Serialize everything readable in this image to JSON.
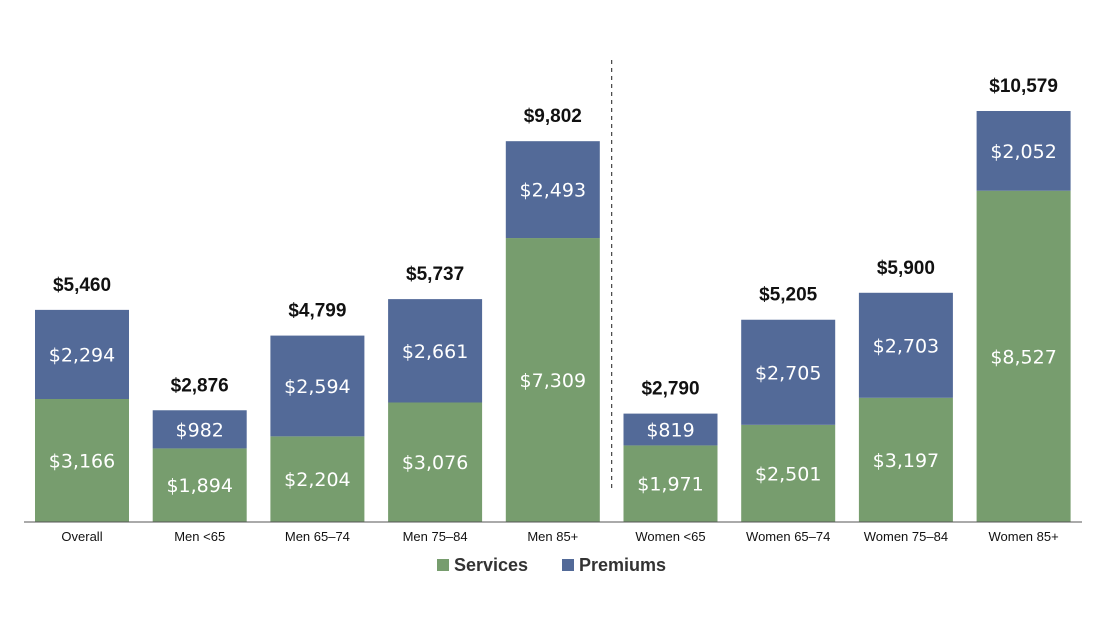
{
  "chart_data": {
    "type": "bar",
    "stacked": true,
    "categories": [
      "Overall",
      "Men <65",
      "Men 65–74",
      "Men 75–84",
      "Men 85+",
      "Women <65",
      "Women 65–74",
      "Women 75–84",
      "Women 85+"
    ],
    "series": [
      {
        "name": "Services",
        "color": "#779d6e",
        "values": [
          3166,
          1894,
          2204,
          3076,
          7309,
          1971,
          2501,
          3197,
          8527
        ],
        "labels": [
          "$3,166",
          "$1,894",
          "$2,204",
          "$3,076",
          "$7,309",
          "$1,971",
          "$2,501",
          "$3,197",
          "$8,527"
        ]
      },
      {
        "name": "Premiums",
        "color": "#536a98",
        "values": [
          2294,
          982,
          2594,
          2661,
          2493,
          819,
          2705,
          2703,
          2052
        ],
        "labels": [
          "$2,294",
          "$982",
          "$2,594",
          "$2,661",
          "$2,493",
          "$819",
          "$2,705",
          "$2,703",
          "$2,052"
        ]
      }
    ],
    "totals": [
      5460,
      2876,
      4799,
      5737,
      9802,
      2790,
      5205,
      5900,
      10579
    ],
    "total_labels": [
      "$5,460",
      "$2,876",
      "$4,799",
      "$5,737",
      "$9,802",
      "$2,790",
      "$5,205",
      "$5,900",
      "$10,579"
    ],
    "ylim": [
      0,
      11500
    ],
    "legend_position": "bottom-center",
    "divider_after_category": 4,
    "grid": false
  }
}
